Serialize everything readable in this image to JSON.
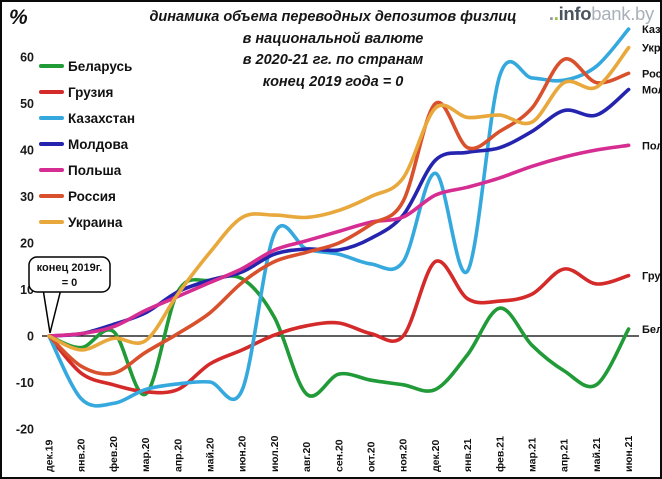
{
  "title": {
    "line1": "динамика объема переводных депозитов физлиц",
    "line2": "в национальной валюте",
    "line3": "в 2020-21 гг. по странам",
    "line4": "конец 2019 года = 0"
  },
  "percent_symbol": "%",
  "logo": {
    "dot1": ".",
    "dot2": ".",
    "dark": "info",
    "light": "bank.by"
  },
  "callout": {
    "line1": "конец 2019г.",
    "line2": "= 0"
  },
  "chart_data": {
    "type": "line",
    "x_labels": [
      "дек.19",
      "янв.20",
      "фев.20",
      "мар.20",
      "апр.20",
      "май.20",
      "июн.20",
      "июл.20",
      "авг.20",
      "сен.20",
      "окт.20",
      "ноя.20",
      "дек.20",
      "янв.21",
      "фев.21",
      "мар.21",
      "апр.21",
      "май.21",
      "июн.21"
    ],
    "y_ticks": [
      60,
      50,
      40,
      30,
      20,
      10,
      0,
      -10,
      -20
    ],
    "ylim": [
      -20,
      67
    ],
    "grid": "off",
    "zero_line": true,
    "legend_position": "upper-left",
    "series": [
      {
        "id": "belarus",
        "name": "Беларусь",
        "short": "Бел",
        "color": "#219a38",
        "values": [
          0,
          -2.5,
          1,
          -12.5,
          9.5,
          12,
          12.3,
          4,
          -12.5,
          -8.2,
          -9.5,
          -10.5,
          -11.5,
          -4,
          6,
          -2,
          -7.5,
          -10.5,
          1.5
        ]
      },
      {
        "id": "georgia",
        "name": "Грузия",
        "short": "Гру",
        "color": "#d42a2a",
        "values": [
          0,
          -8,
          -10.5,
          -12,
          -11.5,
          -6,
          -3,
          0.2,
          2.2,
          2.8,
          0.5,
          0,
          16,
          8,
          7.5,
          9,
          14.4,
          11.2,
          13
        ]
      },
      {
        "id": "kazakhstan",
        "name": "Казахстан",
        "short": "Каз",
        "color": "#35a9de",
        "values": [
          0,
          -13.5,
          -14.5,
          -11.5,
          -10.3,
          -9.9,
          -11.6,
          22,
          18.7,
          17.6,
          15.5,
          16,
          35,
          14,
          56,
          55.5,
          55,
          58,
          66
        ]
      },
      {
        "id": "moldova",
        "name": "Молдова",
        "short": "Мол",
        "color": "#2424af",
        "values": [
          0,
          0.5,
          2.5,
          5,
          9.5,
          12,
          13.8,
          17.6,
          18.7,
          18.5,
          21,
          26,
          37.8,
          39.5,
          40.5,
          44,
          48.5,
          47.5,
          53
        ]
      },
      {
        "id": "poland",
        "name": "Польша",
        "short": "Пол",
        "color": "#d62d92",
        "values": [
          0,
          0.5,
          2,
          5.5,
          8.5,
          11.5,
          14.5,
          18.5,
          20.5,
          22.5,
          24.5,
          25.6,
          30.3,
          32,
          34,
          36.5,
          38.5,
          40,
          41
        ]
      },
      {
        "id": "russia",
        "name": "Россия",
        "short": "Рос",
        "color": "#d9502c",
        "values": [
          0,
          -6.5,
          -8,
          -3.5,
          0.5,
          5,
          11.5,
          16,
          18,
          20,
          24,
          29,
          50,
          40.5,
          44,
          49,
          59.5,
          54.5,
          56.5
        ]
      },
      {
        "id": "ukraine",
        "name": "Украина",
        "short": "Укр",
        "color": "#e8a83c",
        "values": [
          0,
          -3,
          -0.5,
          -1,
          9,
          18,
          25.5,
          26,
          25.5,
          27,
          30,
          34,
          49,
          47,
          47.5,
          46,
          54.5,
          53.5,
          62
        ]
      }
    ]
  }
}
